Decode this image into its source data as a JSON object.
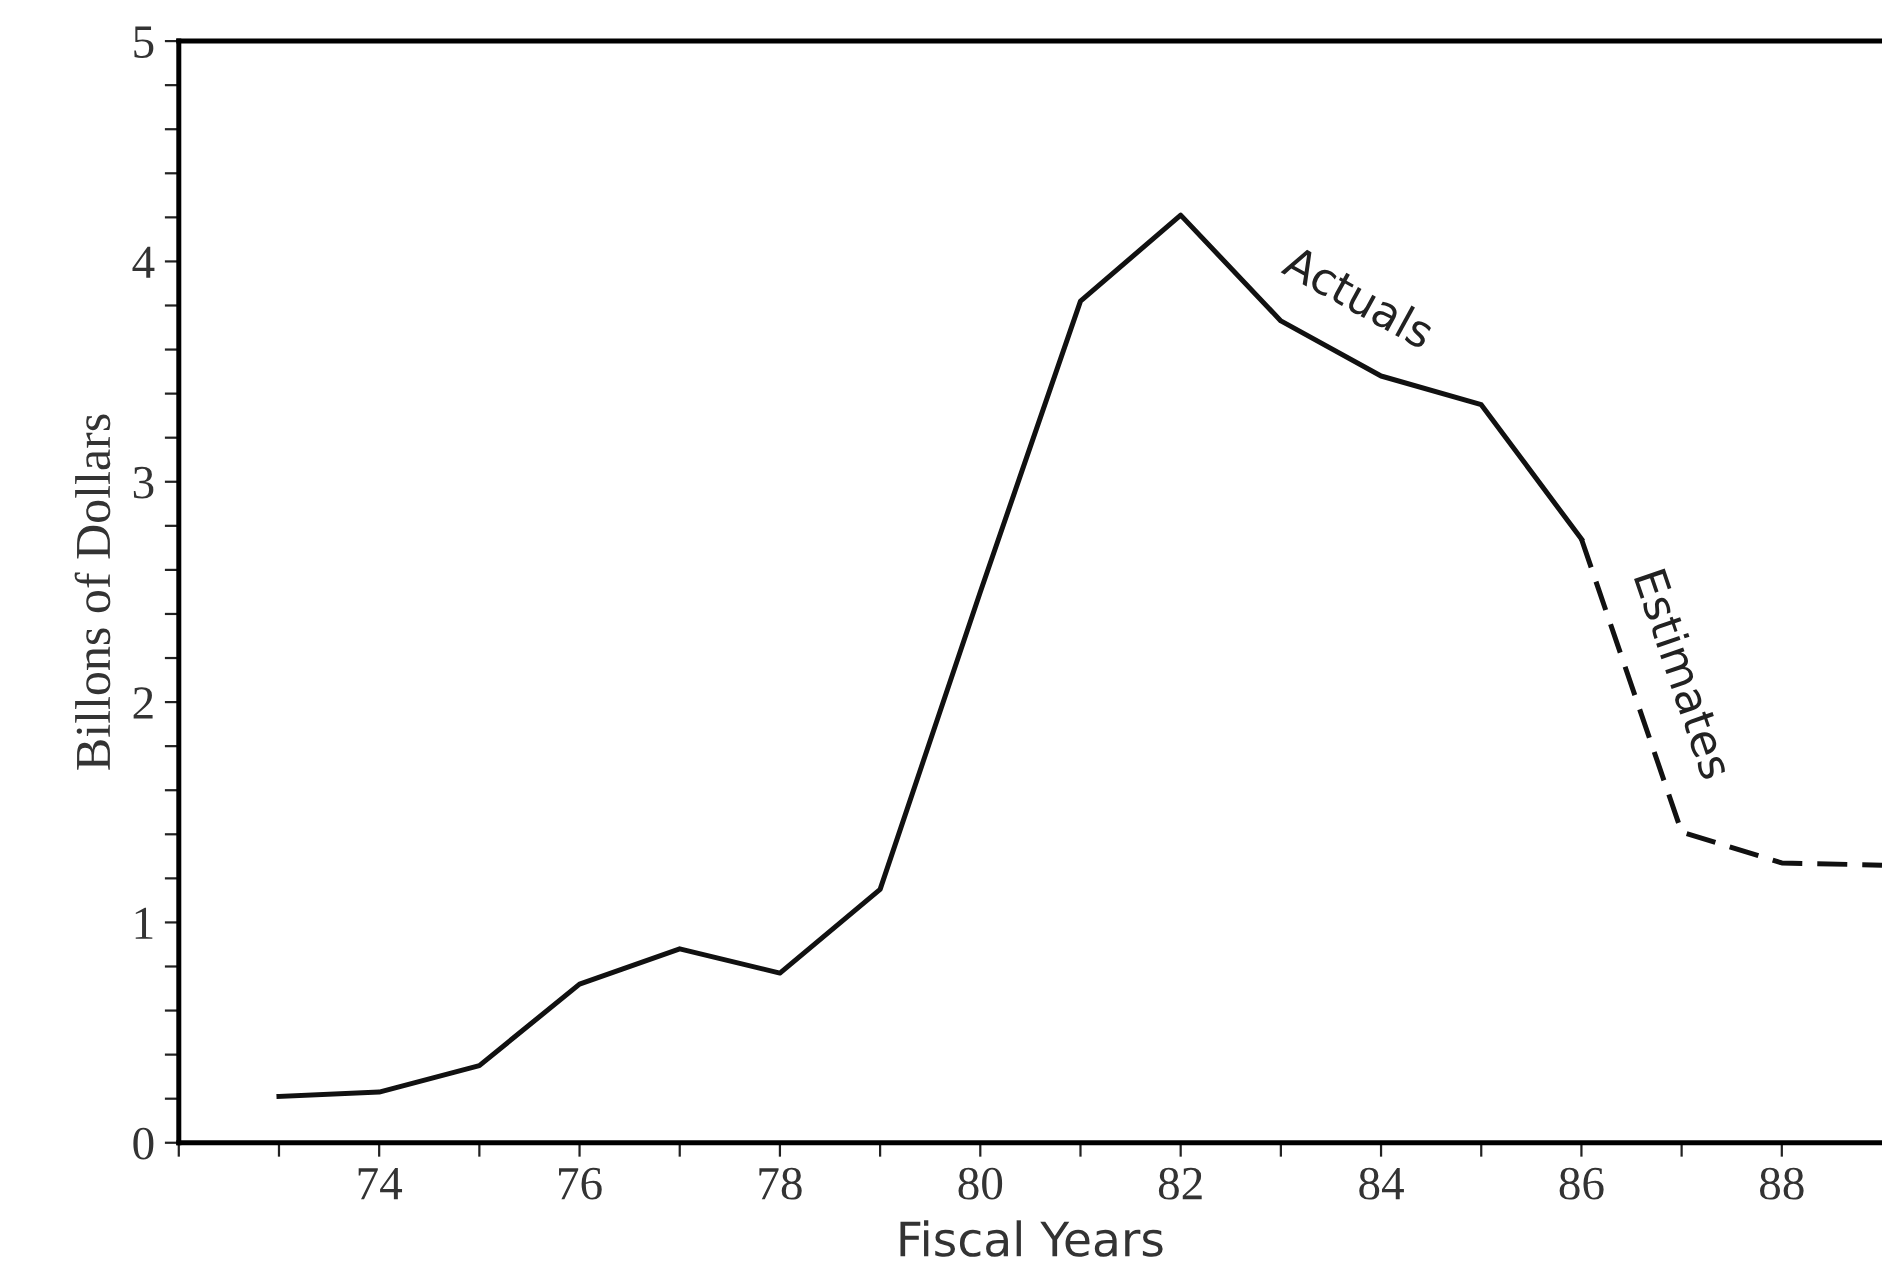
{
  "chart_data": {
    "type": "line",
    "xlabel": "Fiscal Years",
    "ylabel": "Billons of Dollars",
    "series": [
      {
        "name": "Actuals",
        "color": "#111111",
        "line_style": "solid",
        "x": [
          73,
          74,
          75,
          76,
          77,
          78,
          79,
          80,
          81,
          82,
          83,
          84,
          85,
          86
        ],
        "values": [
          0.21,
          0.23,
          0.35,
          0.72,
          0.88,
          0.77,
          1.15,
          2.5,
          3.82,
          4.21,
          3.73,
          3.48,
          3.35,
          2.74
        ]
      },
      {
        "name": "Estimates",
        "color": "#111111",
        "line_style": "dashed",
        "x": [
          86,
          87,
          88,
          89
        ],
        "values": [
          2.74,
          1.41,
          1.27,
          1.26
        ]
      }
    ],
    "xlim": [
      72,
      89
    ],
    "ylim": [
      0,
      5
    ],
    "xticks": [
      {
        "value": 72,
        "label": null
      },
      {
        "value": 73,
        "label": null
      },
      74,
      {
        "value": 75,
        "label": null
      },
      76,
      {
        "value": 77,
        "label": null
      },
      78,
      {
        "value": 79,
        "label": null
      },
      80,
      {
        "value": 81,
        "label": null
      },
      82,
      {
        "value": 83,
        "label": null
      },
      84,
      {
        "value": 85,
        "label": null
      },
      86,
      {
        "value": 87,
        "label": null
      },
      88
    ],
    "yticks": [
      0,
      {
        "value": 0.2,
        "label": null
      },
      {
        "value": 0.4,
        "label": null
      },
      {
        "value": 0.6,
        "label": null
      },
      {
        "value": 0.8,
        "label": null
      },
      1,
      {
        "value": 1.2,
        "label": null
      },
      {
        "value": 1.4,
        "label": null
      },
      {
        "value": 1.6,
        "label": null
      },
      {
        "value": 1.8,
        "label": null
      },
      2,
      {
        "value": 2.2,
        "label": null
      },
      {
        "value": 2.4,
        "label": null
      },
      {
        "value": 2.6,
        "label": null
      },
      {
        "value": 2.8,
        "label": null
      },
      3,
      {
        "value": 3.2,
        "label": null
      },
      {
        "value": 3.4,
        "label": null
      },
      {
        "value": 3.6,
        "label": null
      },
      {
        "value": 3.8,
        "label": null
      },
      4,
      {
        "value": 4.2,
        "label": null
      },
      {
        "value": 4.4,
        "label": null
      },
      {
        "value": 4.6,
        "label": null
      },
      {
        "value": 4.8,
        "label": null
      },
      5
    ],
    "grid": false,
    "marker": "none"
  }
}
